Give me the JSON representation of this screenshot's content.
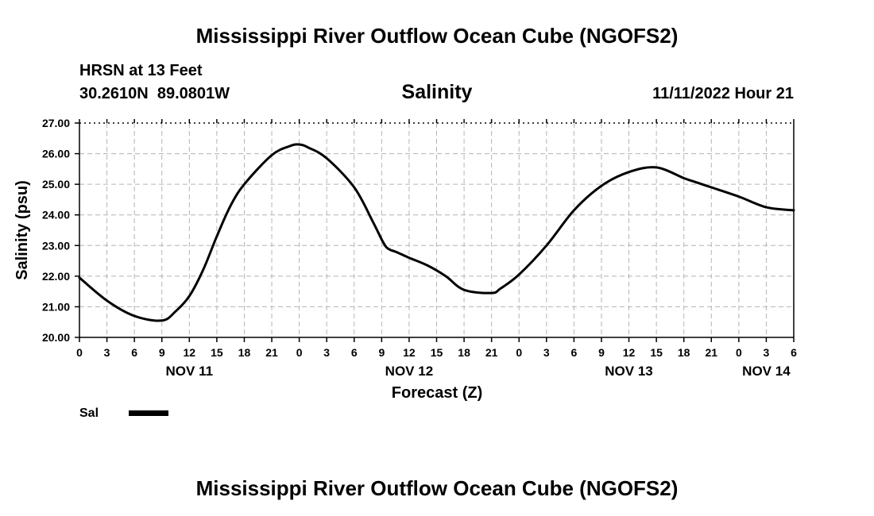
{
  "page_title": "Mississippi River Outflow Ocean Cube (NGOFS2)",
  "footer_title": "Mississippi River Outflow Ocean Cube (NGOFS2)",
  "station": {
    "name": "HRSN at 13 Feet",
    "coords": "30.2610N  89.0801W",
    "datetime": "11/11/2022 Hour 21"
  },
  "chart_data": {
    "type": "line",
    "title": "Salinity",
    "xlabel": "Forecast (Z)",
    "ylabel": "Salinity (psu)",
    "ylim": [
      20,
      27
    ],
    "xlim": [
      0,
      78
    ],
    "x_unit": "hours since NOV 11 00Z",
    "grid": true,
    "y_ticks": [
      "20.00",
      "21.00",
      "22.00",
      "23.00",
      "24.00",
      "25.00",
      "26.00",
      "27.00"
    ],
    "x_tick_labels": [
      "0",
      "3",
      "6",
      "9",
      "12",
      "15",
      "18",
      "21",
      "0",
      "3",
      "6",
      "9",
      "12",
      "15",
      "18",
      "21",
      "0",
      "3",
      "6",
      "9",
      "12",
      "15",
      "18",
      "21",
      "0",
      "3",
      "6"
    ],
    "date_labels": [
      {
        "label": "NOV 11",
        "hour": 12
      },
      {
        "label": "NOV 12",
        "hour": 36
      },
      {
        "label": "NOV 13",
        "hour": 60
      },
      {
        "label": "NOV 14",
        "hour": 75
      }
    ],
    "legend": {
      "placement": "bottom-left",
      "label": "Sal"
    },
    "series": [
      {
        "name": "Sal",
        "color": "#000000",
        "x": [
          0,
          3,
          6,
          9,
          10.5,
          12,
          13.5,
          15,
          16.5,
          18,
          21,
          23,
          24,
          25,
          27,
          30,
          32,
          33,
          33.5,
          34,
          34.5,
          36,
          38,
          40,
          42,
          45,
          46,
          48,
          51,
          54,
          57,
          60,
          63,
          66,
          67,
          69,
          72,
          75,
          78
        ],
        "values": [
          21.95,
          21.2,
          20.7,
          20.55,
          20.85,
          21.35,
          22.2,
          23.3,
          24.3,
          25.0,
          25.95,
          26.25,
          26.3,
          26.2,
          25.85,
          24.9,
          23.8,
          23.2,
          22.95,
          22.85,
          22.8,
          22.6,
          22.35,
          22.0,
          21.55,
          21.45,
          21.6,
          22.05,
          23.0,
          24.15,
          24.95,
          25.4,
          25.55,
          25.2,
          25.1,
          24.9,
          24.6,
          24.25,
          24.15
        ]
      }
    ]
  }
}
